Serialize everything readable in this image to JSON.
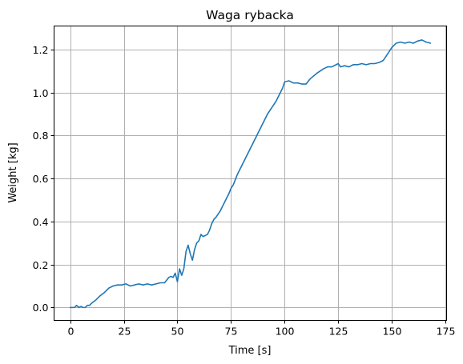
{
  "chart_data": {
    "type": "line",
    "title": "Waga rybacka",
    "xlabel": "Time [s]",
    "ylabel": "Weight [kg]",
    "xlim": [
      -7.5,
      175.5
    ],
    "ylim": [
      -0.06,
      1.31
    ],
    "xticks": [
      0,
      25,
      50,
      75,
      100,
      125,
      150,
      175
    ],
    "yticks": [
      0.0,
      0.2,
      0.4,
      0.6,
      0.8,
      1.0,
      1.2
    ],
    "xtick_labels": [
      "0",
      "25",
      "50",
      "75",
      "100",
      "125",
      "150",
      "175"
    ],
    "ytick_labels": [
      "0.0",
      "0.2",
      "0.4",
      "0.6",
      "0.8",
      "1.0",
      "1.2"
    ],
    "grid": true,
    "series": [
      {
        "color": "#1f77b4",
        "x": [
          0,
          2,
          3,
          4,
          5,
          6,
          7,
          8,
          9,
          10,
          12,
          14,
          16,
          18,
          20,
          22,
          24,
          26,
          28,
          30,
          32,
          34,
          36,
          38,
          40,
          42,
          44,
          46,
          47,
          48,
          49,
          50,
          51,
          52,
          53,
          54,
          55,
          56,
          57,
          58,
          59,
          60,
          61,
          62,
          64,
          65,
          66,
          67,
          68,
          70,
          72,
          74,
          75,
          76,
          78,
          80,
          82,
          84,
          86,
          88,
          90,
          92,
          94,
          96,
          98,
          99,
          100,
          102,
          104,
          106,
          108,
          110,
          112,
          115,
          118,
          120,
          122,
          124,
          125,
          126,
          128,
          130,
          132,
          134,
          136,
          138,
          140,
          142,
          144,
          146,
          148,
          150,
          152,
          154,
          156,
          158,
          160,
          162,
          164,
          165,
          166,
          168
        ],
        "y": [
          0.0,
          0.0,
          0.01,
          0.0,
          0.005,
          0.0,
          0.0,
          0.01,
          0.01,
          0.02,
          0.035,
          0.055,
          0.07,
          0.09,
          0.1,
          0.105,
          0.105,
          0.11,
          0.1,
          0.105,
          0.11,
          0.105,
          0.11,
          0.105,
          0.11,
          0.115,
          0.115,
          0.14,
          0.145,
          0.14,
          0.16,
          0.12,
          0.18,
          0.15,
          0.18,
          0.26,
          0.29,
          0.25,
          0.22,
          0.27,
          0.3,
          0.31,
          0.34,
          0.33,
          0.34,
          0.36,
          0.39,
          0.41,
          0.42,
          0.45,
          0.49,
          0.53,
          0.555,
          0.57,
          0.62,
          0.66,
          0.7,
          0.74,
          0.78,
          0.82,
          0.86,
          0.9,
          0.93,
          0.96,
          1.0,
          1.02,
          1.05,
          1.055,
          1.045,
          1.045,
          1.04,
          1.04,
          1.065,
          1.09,
          1.11,
          1.12,
          1.12,
          1.13,
          1.135,
          1.12,
          1.125,
          1.12,
          1.13,
          1.13,
          1.135,
          1.13,
          1.135,
          1.135,
          1.14,
          1.15,
          1.18,
          1.21,
          1.23,
          1.235,
          1.23,
          1.235,
          1.23,
          1.24,
          1.245,
          1.24,
          1.235,
          1.23
        ]
      }
    ]
  }
}
